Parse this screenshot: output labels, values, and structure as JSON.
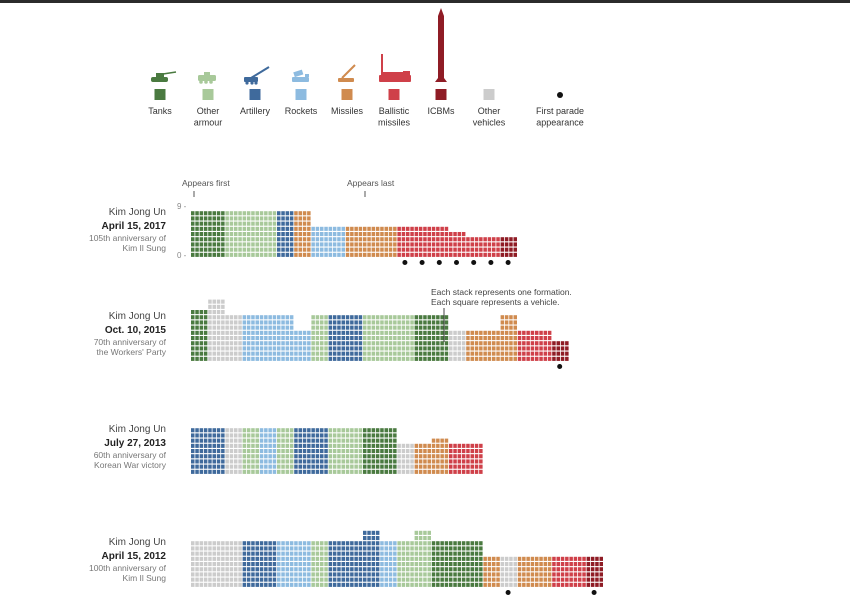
{
  "legend": [
    {
      "key": "tanks",
      "label": [
        "Tanks"
      ],
      "color": "#4a7a40",
      "icon": "tank-icon"
    },
    {
      "key": "armour",
      "label": [
        "Other",
        "armour"
      ],
      "color": "#a8c99a",
      "icon": "armoured-vehicle-icon"
    },
    {
      "key": "artillery",
      "label": [
        "Artillery"
      ],
      "color": "#3f6a9c",
      "icon": "artillery-icon"
    },
    {
      "key": "rockets",
      "label": [
        "Rockets"
      ],
      "color": "#8dbbe0",
      "icon": "rocket-launcher-icon"
    },
    {
      "key": "missiles",
      "label": [
        "Missiles"
      ],
      "color": "#d08b4f",
      "icon": "missile-launcher-icon"
    },
    {
      "key": "ballistic",
      "label": [
        "Ballistic",
        "missiles"
      ],
      "color": "#cf4049",
      "icon": "ballistic-missile-icon"
    },
    {
      "key": "icbm",
      "label": [
        "ICBMs"
      ],
      "color": "#8f1c25",
      "icon": "icbm-icon"
    },
    {
      "key": "other",
      "label": [
        "Other",
        "vehicles"
      ],
      "color": "#cccccc",
      "icon": null
    },
    {
      "key": "first",
      "label": [
        "First parade",
        "appearance"
      ],
      "color": "#111111",
      "icon": "dot-icon"
    }
  ],
  "annotations": {
    "appears_first": "Appears first",
    "appears_last": "Appears last",
    "axis_max": "9 -",
    "axis_min": "0 -",
    "stack_note_1": "Each stack represents one formation.",
    "stack_note_2": "Each square represents a vehicle."
  },
  "chart_data": {
    "type": "stacked unit chart",
    "unit": "one square = one vehicle; one stack = one formation",
    "parades": [
      {
        "leader": "Kim Jong Un",
        "date": "April 15, 2017",
        "occasion": [
          "105th anniversary of",
          "Kim Il Sung"
        ],
        "formations": [
          {
            "cat": "tanks",
            "count": 9
          },
          {
            "cat": "tanks",
            "count": 9
          },
          {
            "cat": "armour",
            "count": 9
          },
          {
            "cat": "armour",
            "count": 9
          },
          {
            "cat": "armour",
            "count": 9
          },
          {
            "cat": "artillery",
            "count": 9
          },
          {
            "cat": "missiles",
            "count": 9
          },
          {
            "cat": "rockets",
            "count": 6
          },
          {
            "cat": "rockets",
            "count": 6
          },
          {
            "cat": "missiles",
            "count": 6
          },
          {
            "cat": "missiles",
            "count": 6
          },
          {
            "cat": "missiles",
            "count": 6
          },
          {
            "cat": "ballistic",
            "count": 6,
            "first": true
          },
          {
            "cat": "ballistic",
            "count": 6,
            "first": true
          },
          {
            "cat": "ballistic",
            "count": 6,
            "first": true
          },
          {
            "cat": "ballistic",
            "count": 5,
            "first": true
          },
          {
            "cat": "ballistic",
            "count": 4,
            "first": true
          },
          {
            "cat": "ballistic",
            "count": 4,
            "first": true
          },
          {
            "cat": "icbm",
            "count": 4,
            "first": true
          }
        ]
      },
      {
        "leader": "Kim Jong Un",
        "date": "Oct. 10, 2015",
        "occasion": [
          "70th anniversary of",
          "the Workers' Party"
        ],
        "formations": [
          {
            "cat": "tanks",
            "count": 10
          },
          {
            "cat": "other",
            "count": 12
          },
          {
            "cat": "other",
            "count": 9
          },
          {
            "cat": "rockets",
            "count": 9
          },
          {
            "cat": "rockets",
            "count": 9
          },
          {
            "cat": "rockets",
            "count": 9
          },
          {
            "cat": "rockets",
            "count": 6
          },
          {
            "cat": "armour",
            "count": 9
          },
          {
            "cat": "artillery",
            "count": 9
          },
          {
            "cat": "artillery",
            "count": 9
          },
          {
            "cat": "armour",
            "count": 9
          },
          {
            "cat": "armour",
            "count": 9
          },
          {
            "cat": "armour",
            "count": 9
          },
          {
            "cat": "tanks",
            "count": 9
          },
          {
            "cat": "tanks",
            "count": 9
          },
          {
            "cat": "other",
            "count": 6
          },
          {
            "cat": "missiles",
            "count": 6
          },
          {
            "cat": "missiles",
            "count": 6
          },
          {
            "cat": "missiles",
            "count": 9
          },
          {
            "cat": "ballistic",
            "count": 6
          },
          {
            "cat": "ballistic",
            "count": 6
          },
          {
            "cat": "icbm",
            "count": 4,
            "first": true
          }
        ]
      },
      {
        "leader": "Kim Jong Un",
        "date": "July 27, 2013",
        "occasion": [
          "60th anniversary of",
          "Korean War victory"
        ],
        "formations": [
          {
            "cat": "artillery",
            "count": 9
          },
          {
            "cat": "artillery",
            "count": 9
          },
          {
            "cat": "other",
            "count": 9
          },
          {
            "cat": "armour",
            "count": 9
          },
          {
            "cat": "rockets",
            "count": 9
          },
          {
            "cat": "armour",
            "count": 9
          },
          {
            "cat": "artillery",
            "count": 9
          },
          {
            "cat": "artillery",
            "count": 9
          },
          {
            "cat": "armour",
            "count": 9
          },
          {
            "cat": "armour",
            "count": 9
          },
          {
            "cat": "tanks",
            "count": 9
          },
          {
            "cat": "tanks",
            "count": 9
          },
          {
            "cat": "other",
            "count": 6
          },
          {
            "cat": "missiles",
            "count": 6
          },
          {
            "cat": "missiles",
            "count": 7
          },
          {
            "cat": "ballistic",
            "count": 6
          },
          {
            "cat": "ballistic",
            "count": 6
          }
        ]
      },
      {
        "leader": "Kim Jong Un",
        "date": "April 15, 2012",
        "occasion": [
          "100th anniversary of",
          "Kim Il Sung"
        ],
        "formations": [
          {
            "cat": "other",
            "count": 9
          },
          {
            "cat": "other",
            "count": 9
          },
          {
            "cat": "other",
            "count": 9
          },
          {
            "cat": "artillery",
            "count": 9
          },
          {
            "cat": "artillery",
            "count": 9
          },
          {
            "cat": "rockets",
            "count": 9
          },
          {
            "cat": "rockets",
            "count": 9
          },
          {
            "cat": "armour",
            "count": 9
          },
          {
            "cat": "artillery",
            "count": 9
          },
          {
            "cat": "artillery",
            "count": 9
          },
          {
            "cat": "artillery",
            "count": 11
          },
          {
            "cat": "rockets",
            "count": 9
          },
          {
            "cat": "armour",
            "count": 9
          },
          {
            "cat": "armour",
            "count": 11
          },
          {
            "cat": "tanks",
            "count": 9
          },
          {
            "cat": "tanks",
            "count": 9
          },
          {
            "cat": "tanks",
            "count": 9
          },
          {
            "cat": "missiles",
            "count": 6
          },
          {
            "cat": "other",
            "count": 6,
            "first": true
          },
          {
            "cat": "missiles",
            "count": 6
          },
          {
            "cat": "missiles",
            "count": 6
          },
          {
            "cat": "ballistic",
            "count": 6
          },
          {
            "cat": "ballistic",
            "count": 6
          },
          {
            "cat": "icbm",
            "count": 6,
            "first": true
          }
        ]
      }
    ]
  }
}
